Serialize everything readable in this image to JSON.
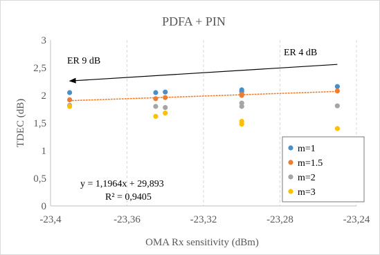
{
  "chart_data": {
    "type": "scatter",
    "title": "PDFA + PIN",
    "xlabel": "OMA Rx sensitivity (dBm)",
    "ylabel": "TDEC (dB)",
    "xlim": [
      -23.4,
      -23.24
    ],
    "ylim": [
      0,
      3
    ],
    "x_ticks": [
      -23.4,
      -23.36,
      -23.32,
      -23.28,
      -23.24
    ],
    "x_tick_labels": [
      "-23,4",
      "-23,36",
      "-23,32",
      "-23,28",
      "-23,24"
    ],
    "y_ticks": [
      0,
      0.5,
      1,
      1.5,
      2,
      2.5,
      3
    ],
    "y_tick_labels": [
      "0",
      "0,5",
      "1",
      "1,5",
      "2",
      "2,5",
      "3"
    ],
    "grid": {
      "vertical": true,
      "horizontal": false,
      "style": "dashed"
    },
    "legend_position": "bottom-right",
    "series": [
      {
        "name": "m=1",
        "color": "#4A8FCB",
        "points": [
          {
            "x": -23.39,
            "y": 2.05
          },
          {
            "x": -23.345,
            "y": 2.05
          },
          {
            "x": -23.34,
            "y": 2.06
          },
          {
            "x": -23.3,
            "y": 2.1
          },
          {
            "x": -23.3,
            "y": 2.07
          },
          {
            "x": -23.25,
            "y": 2.16
          }
        ]
      },
      {
        "name": "m=1.5",
        "color": "#ED7D31",
        "points": [
          {
            "x": -23.39,
            "y": 1.92
          },
          {
            "x": -23.345,
            "y": 1.94
          },
          {
            "x": -23.34,
            "y": 1.96
          },
          {
            "x": -23.3,
            "y": 2.02
          },
          {
            "x": -23.3,
            "y": 2.0
          },
          {
            "x": -23.25,
            "y": 2.08
          }
        ]
      },
      {
        "name": "m=2",
        "color": "#A5A5A5",
        "points": [
          {
            "x": -23.39,
            "y": 1.82
          },
          {
            "x": -23.345,
            "y": 1.8
          },
          {
            "x": -23.34,
            "y": 1.78
          },
          {
            "x": -23.3,
            "y": 1.86
          },
          {
            "x": -23.3,
            "y": 1.8
          },
          {
            "x": -23.25,
            "y": 1.81
          }
        ]
      },
      {
        "name": "m=3",
        "color": "#FFC000",
        "points": [
          {
            "x": -23.39,
            "y": 1.8
          },
          {
            "x": -23.345,
            "y": 1.62
          },
          {
            "x": -23.34,
            "y": 1.68
          },
          {
            "x": -23.3,
            "y": 1.53
          },
          {
            "x": -23.3,
            "y": 1.48
          },
          {
            "x": -23.25,
            "y": 1.4
          }
        ]
      }
    ],
    "trendline": {
      "series": "m=1.5",
      "style": "dotted",
      "color": "#ED7D31",
      "x_range": [
        -23.39,
        -23.25
      ],
      "equation": "y = 1,1964x + 29,893",
      "r_squared": "R² = 0,9405"
    },
    "annotations": {
      "arrow": {
        "from": [
          -23.25,
          2.56
        ],
        "to": [
          -23.39,
          2.26
        ],
        "color": "#000000"
      },
      "label_right": "ER 4 dB",
      "label_left": "ER 9 dB"
    }
  }
}
